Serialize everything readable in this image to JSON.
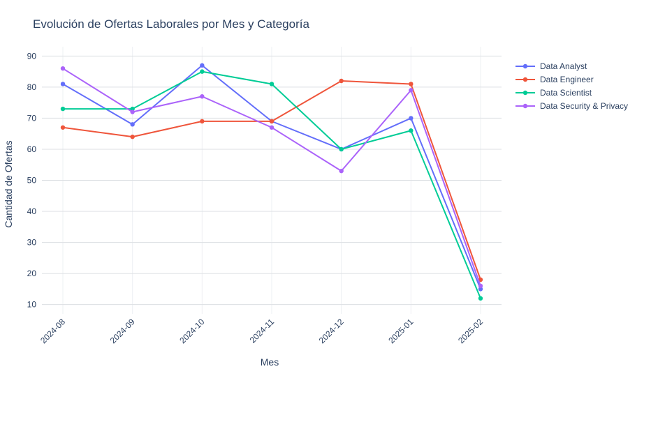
{
  "chart_data": {
    "type": "line",
    "title": "Evolución de Ofertas Laborales por Mes y Categoría",
    "xlabel": "Mes",
    "ylabel": "Cantidad de Ofertas",
    "categories": [
      "2024-08",
      "2024-09",
      "2024-10",
      "2024-11",
      "2024-12",
      "2025-01",
      "2025-02"
    ],
    "yticks": [
      10,
      20,
      30,
      40,
      50,
      60,
      70,
      80,
      90
    ],
    "ylim": [
      7,
      93
    ],
    "grid": true,
    "legend_position": "top-right",
    "series": [
      {
        "name": "Data Analyst",
        "color": "#636efa",
        "values": [
          81,
          68,
          87,
          69,
          60,
          70,
          15
        ]
      },
      {
        "name": "Data Engineer",
        "color": "#ef553b",
        "values": [
          67,
          64,
          69,
          69,
          82,
          81,
          18
        ]
      },
      {
        "name": "Data Scientist",
        "color": "#00cc96",
        "values": [
          73,
          73,
          85,
          81,
          60,
          66,
          12
        ]
      },
      {
        "name": "Data Security & Privacy",
        "color": "#ab63fa",
        "values": [
          86,
          72,
          77,
          67,
          53,
          79,
          16
        ]
      }
    ]
  }
}
